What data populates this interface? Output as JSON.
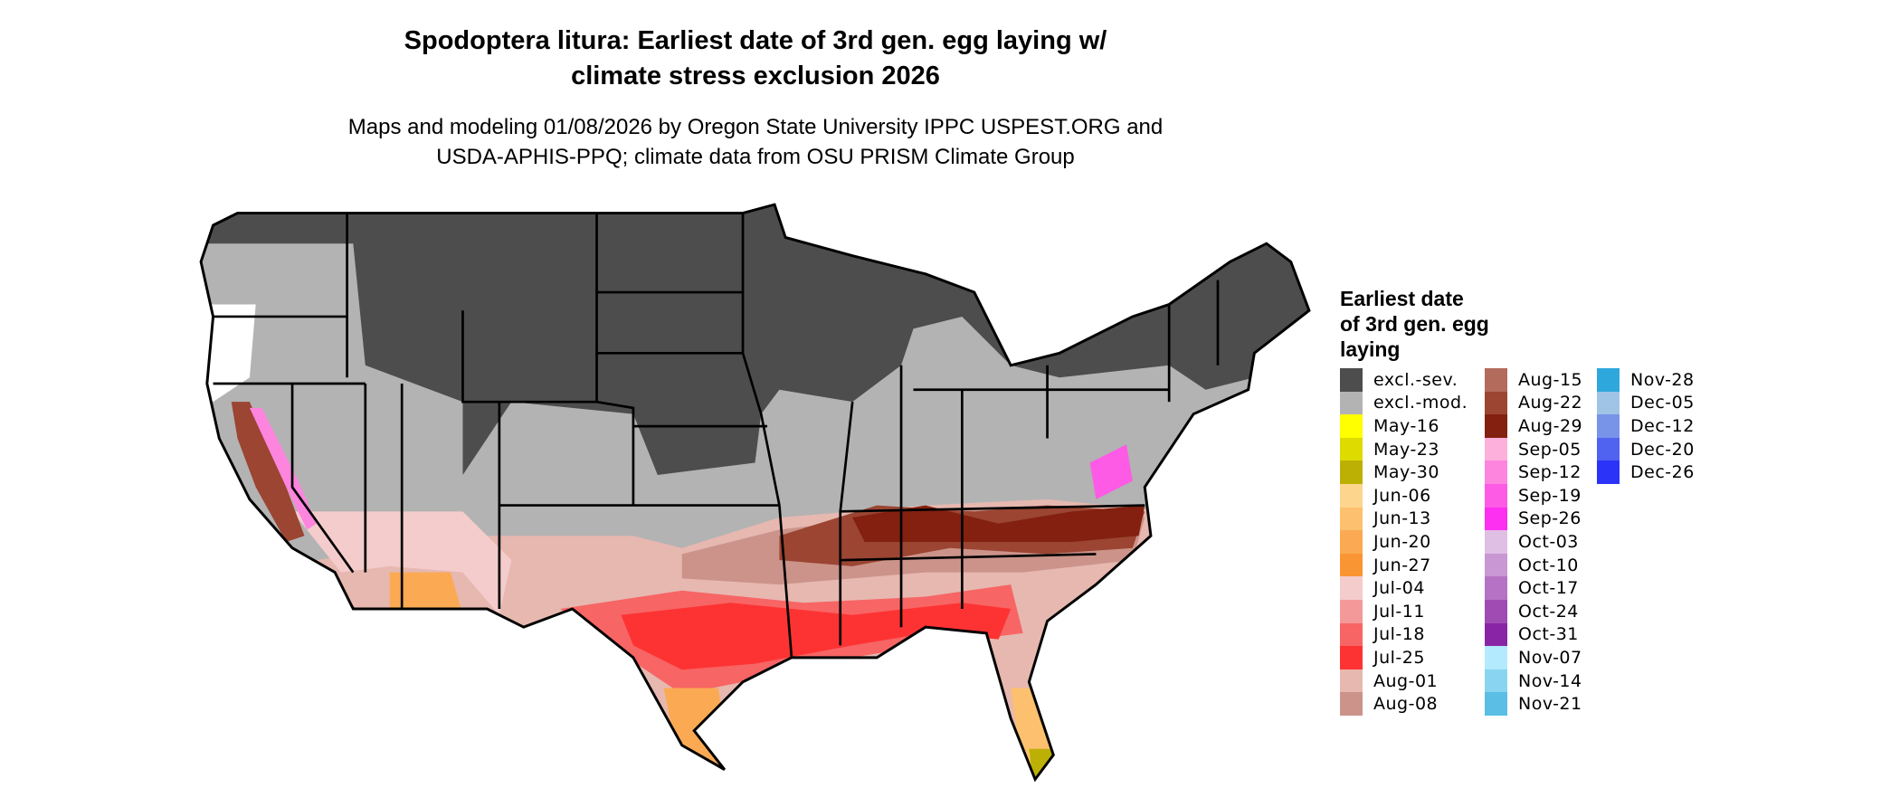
{
  "title": {
    "line1": "Spodoptera litura: Earliest date of 3rd gen. egg laying w/",
    "line2": "climate stress exclusion 2026"
  },
  "subtitle": {
    "line1": "Maps and modeling 01/08/2026 by Oregon State University IPPC USPEST.ORG and",
    "line2": "USDA-APHIS-PPQ; climate data from OSU PRISM Climate Group"
  },
  "legend": {
    "title_lines": [
      "Earliest date",
      "of 3rd gen. egg",
      "laying"
    ],
    "columns": [
      [
        {
          "label": "excl.-sev.",
          "color": "#4d4d4d"
        },
        {
          "label": "excl.-mod.",
          "color": "#b3b3b3"
        },
        {
          "label": "May-16",
          "color": "#ffff00"
        },
        {
          "label": "May-23",
          "color": "#dedb00"
        },
        {
          "label": "May-30",
          "color": "#bdb005"
        },
        {
          "label": "Jun-06",
          "color": "#fdd58d"
        },
        {
          "label": "Jun-13",
          "color": "#fcc06e"
        },
        {
          "label": "Jun-20",
          "color": "#fbaa53"
        },
        {
          "label": "Jun-27",
          "color": "#fa9533"
        },
        {
          "label": "Jul-04",
          "color": "#f4cccc"
        },
        {
          "label": "Jul-11",
          "color": "#f39999"
        },
        {
          "label": "Jul-18",
          "color": "#f76565"
        },
        {
          "label": "Jul-25",
          "color": "#fd3333"
        },
        {
          "label": "Aug-01",
          "color": "#e6b8b0"
        },
        {
          "label": "Aug-08",
          "color": "#cb938a"
        }
      ],
      [
        {
          "label": "Aug-15",
          "color": "#b36b5c"
        },
        {
          "label": "Aug-22",
          "color": "#9b4532"
        },
        {
          "label": "Aug-29",
          "color": "#832010"
        },
        {
          "label": "Sep-05",
          "color": "#fdb0db"
        },
        {
          "label": "Sep-12",
          "color": "#fd85de"
        },
        {
          "label": "Sep-19",
          "color": "#fd5be6"
        },
        {
          "label": "Sep-26",
          "color": "#fd2ff0"
        },
        {
          "label": "Oct-03",
          "color": "#e0bfe5"
        },
        {
          "label": "Oct-10",
          "color": "#c997d3"
        },
        {
          "label": "Oct-17",
          "color": "#b672c4"
        },
        {
          "label": "Oct-24",
          "color": "#a04bb4"
        },
        {
          "label": "Oct-31",
          "color": "#8a24a6"
        },
        {
          "label": "Nov-07",
          "color": "#b3eafd"
        },
        {
          "label": "Nov-14",
          "color": "#89d4f0"
        },
        {
          "label": "Nov-21",
          "color": "#5bbee5"
        }
      ],
      [
        {
          "label": "Nov-28",
          "color": "#2ea8dc"
        },
        {
          "label": "Dec-05",
          "color": "#a0c4e6"
        },
        {
          "label": "Dec-12",
          "color": "#7894e9"
        },
        {
          "label": "Dec-20",
          "color": "#4f62f0"
        },
        {
          "label": "Dec-26",
          "color": "#2b33f8"
        }
      ]
    ]
  }
}
